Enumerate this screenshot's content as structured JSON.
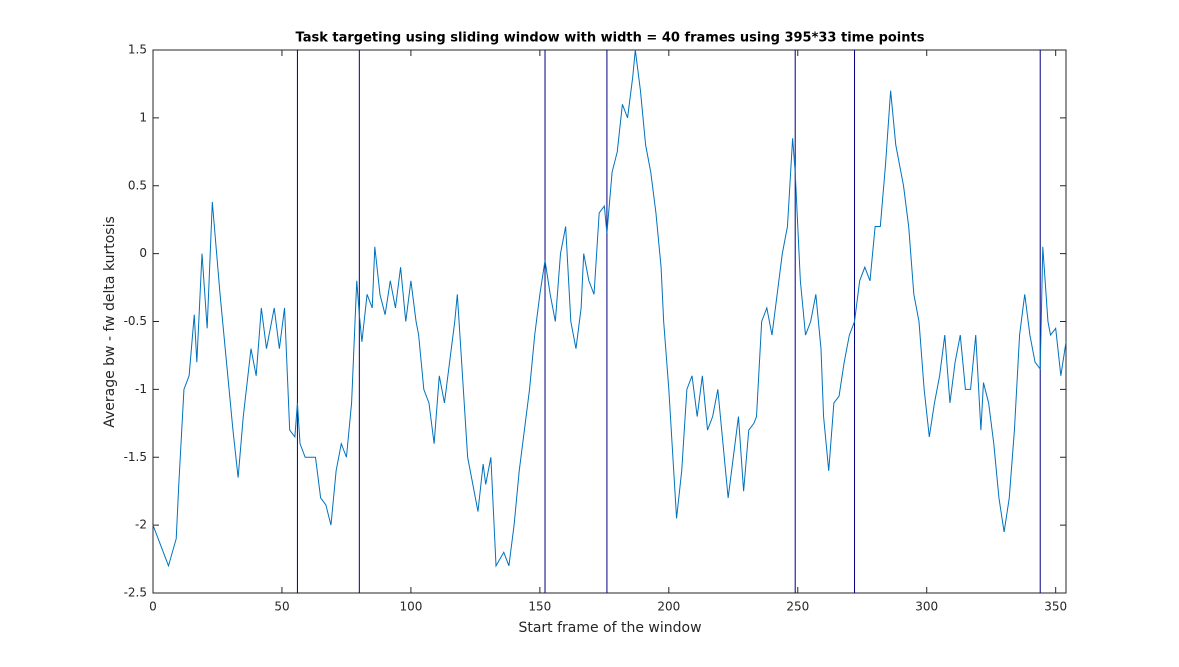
{
  "chart_data": {
    "type": "line",
    "title": "Task targeting using sliding window with width = 40 frames using 395*33 time points",
    "xlabel": "Start frame of the window",
    "ylabel": "Average bw - fw delta kurtosis",
    "xlim": [
      0,
      354
    ],
    "ylim": [
      -2.5,
      1.5
    ],
    "xticks": [
      0,
      50,
      100,
      150,
      200,
      250,
      300,
      350
    ],
    "yticks": [
      -2.5,
      -2,
      -1.5,
      -1,
      -0.5,
      0,
      0.5,
      1,
      1.5
    ],
    "vlines": [
      56,
      80,
      152,
      176,
      249,
      272,
      344
    ],
    "vline_color": "#000080",
    "series": [
      {
        "color": "#0072bd",
        "x": [
          0,
          3,
          6,
          9,
          10,
          12,
          14,
          16,
          17,
          19,
          21,
          23,
          26,
          28,
          31,
          33,
          35,
          38,
          40,
          42,
          44,
          47,
          49,
          51,
          53,
          55,
          56,
          57,
          59,
          63,
          65,
          67,
          69,
          71,
          73,
          75,
          77,
          79,
          80,
          81,
          83,
          85,
          86,
          88,
          90,
          92,
          94,
          96,
          98,
          100,
          102,
          103,
          105,
          107,
          109,
          111,
          113,
          115,
          117,
          118,
          120,
          122,
          124,
          126,
          128,
          129,
          131,
          133,
          136,
          138,
          140,
          142,
          144,
          146,
          148,
          150,
          152,
          154,
          156,
          158,
          160,
          162,
          164,
          166,
          167,
          169,
          171,
          173,
          175,
          176,
          178,
          180,
          182,
          184,
          186,
          187,
          189,
          191,
          193,
          195,
          197,
          198,
          200,
          203,
          205,
          207,
          209,
          211,
          213,
          215,
          217,
          219,
          221,
          223,
          225,
          227,
          229,
          231,
          233,
          234,
          236,
          238,
          240,
          242,
          244,
          246,
          248,
          249,
          251,
          253,
          255,
          257,
          259,
          260,
          262,
          264,
          266,
          268,
          270,
          272,
          274,
          276,
          278,
          280,
          282,
          284,
          286,
          288,
          290,
          291,
          293,
          295,
          297,
          299,
          301,
          303,
          305,
          307,
          309,
          311,
          313,
          315,
          317,
          319,
          321,
          322,
          324,
          326,
          328,
          330,
          332,
          334,
          336,
          338,
          340,
          342,
          344,
          345,
          347,
          348,
          350,
          352,
          354
        ],
        "values": [
          -2.0,
          -2.15,
          -2.3,
          -2.1,
          -1.7,
          -1.0,
          -0.9,
          -0.45,
          -0.8,
          0.0,
          -0.55,
          0.38,
          -0.3,
          -0.7,
          -1.3,
          -1.65,
          -1.2,
          -0.7,
          -0.9,
          -0.4,
          -0.7,
          -0.4,
          -0.7,
          -0.4,
          -1.3,
          -1.35,
          -1.1,
          -1.4,
          -1.5,
          -1.5,
          -1.8,
          -1.85,
          -2.0,
          -1.6,
          -1.4,
          -1.5,
          -1.1,
          -0.2,
          -0.45,
          -0.65,
          -0.3,
          -0.4,
          0.05,
          -0.3,
          -0.45,
          -0.2,
          -0.4,
          -0.1,
          -0.5,
          -0.2,
          -0.5,
          -0.6,
          -1.0,
          -1.1,
          -1.4,
          -0.9,
          -1.1,
          -0.8,
          -0.5,
          -0.3,
          -0.9,
          -1.5,
          -1.7,
          -1.9,
          -1.55,
          -1.7,
          -1.5,
          -2.3,
          -2.2,
          -2.3,
          -2.0,
          -1.6,
          -1.3,
          -1.0,
          -0.6,
          -0.3,
          -0.05,
          -0.3,
          -0.5,
          0.0,
          0.2,
          -0.5,
          -0.7,
          -0.4,
          0.0,
          -0.2,
          -0.3,
          0.3,
          0.35,
          0.15,
          0.6,
          0.75,
          1.1,
          1.0,
          1.3,
          1.5,
          1.2,
          0.8,
          0.6,
          0.3,
          -0.1,
          -0.5,
          -1.0,
          -1.95,
          -1.6,
          -1.0,
          -0.9,
          -1.2,
          -0.9,
          -1.3,
          -1.2,
          -1.0,
          -1.4,
          -1.8,
          -1.5,
          -1.2,
          -1.75,
          -1.3,
          -1.25,
          -1.2,
          -0.5,
          -0.4,
          -0.6,
          -0.3,
          0.0,
          0.2,
          0.85,
          0.6,
          -0.2,
          -0.6,
          -0.5,
          -0.3,
          -0.7,
          -1.2,
          -1.6,
          -1.1,
          -1.05,
          -0.8,
          -0.6,
          -0.5,
          -0.2,
          -0.1,
          -0.2,
          0.2,
          0.2,
          0.65,
          1.2,
          0.8,
          0.6,
          0.5,
          0.2,
          -0.3,
          -0.5,
          -1.0,
          -1.35,
          -1.1,
          -0.9,
          -0.6,
          -1.1,
          -0.8,
          -0.6,
          -1.0,
          -1.0,
          -0.6,
          -1.3,
          -0.95,
          -1.1,
          -1.4,
          -1.8,
          -2.05,
          -1.8,
          -1.3,
          -0.6,
          -0.3,
          -0.6,
          -0.8,
          -0.85,
          0.05,
          -0.5,
          -0.6,
          -0.55,
          -0.9,
          -0.65
        ]
      }
    ]
  }
}
